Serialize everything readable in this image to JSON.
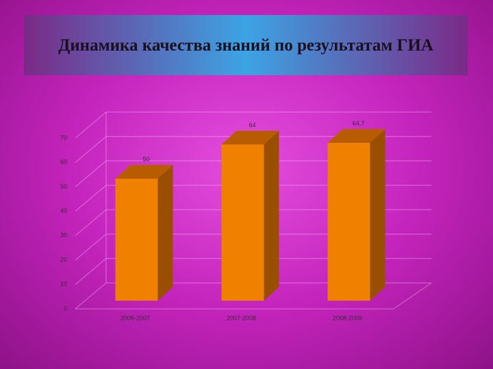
{
  "chart_data": {
    "type": "bar3d",
    "title": "Динамика качества знаний по результатам ГИА",
    "categories": [
      "2006-2007",
      "2007-2008",
      "2008-2009"
    ],
    "values": [
      50,
      64,
      64.7
    ],
    "value_labels": [
      "50",
      "64",
      "64,7"
    ],
    "color": "#f08000",
    "ylim": [
      0,
      70
    ],
    "yticks": [
      0,
      10,
      20,
      30,
      40,
      50,
      60,
      70
    ],
    "grid": true
  }
}
